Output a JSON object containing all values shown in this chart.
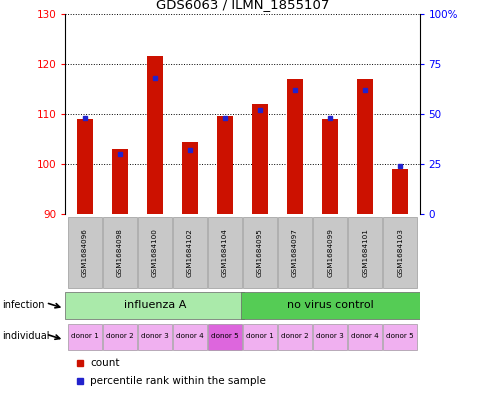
{
  "title": "GDS6063 / ILMN_1855107",
  "samples": [
    "GSM1684096",
    "GSM1684098",
    "GSM1684100",
    "GSM1684102",
    "GSM1684104",
    "GSM1684095",
    "GSM1684097",
    "GSM1684099",
    "GSM1684101",
    "GSM1684103"
  ],
  "count_values": [
    109.0,
    103.0,
    121.5,
    104.5,
    109.5,
    112.0,
    117.0,
    109.0,
    117.0,
    99.0
  ],
  "percentile_values": [
    48,
    30,
    68,
    32,
    48,
    52,
    62,
    48,
    62,
    24
  ],
  "ylim_left": [
    90,
    130
  ],
  "ylim_right": [
    0,
    100
  ],
  "yticks_left": [
    90,
    100,
    110,
    120,
    130
  ],
  "yticks_right": [
    0,
    25,
    50,
    75,
    100
  ],
  "yticklabels_right": [
    "0",
    "25",
    "50",
    "75",
    "100%"
  ],
  "infection_groups": [
    {
      "label": "influenza A",
      "start": 0,
      "end": 5,
      "color": "#aaeaaa"
    },
    {
      "label": "no virus control",
      "start": 5,
      "end": 10,
      "color": "#55cc55"
    }
  ],
  "individual_labels": [
    "donor 1",
    "donor 2",
    "donor 3",
    "donor 4",
    "donor 5",
    "donor 1",
    "donor 2",
    "donor 3",
    "donor 4",
    "donor 5"
  ],
  "individual_colors": [
    "#f0b0f0",
    "#f0b0f0",
    "#f0b0f0",
    "#f0b0f0",
    "#dd66dd",
    "#f0b0f0",
    "#f0b0f0",
    "#f0b0f0",
    "#f0b0f0",
    "#f0b0f0"
  ],
  "bar_color": "#cc1100",
  "blue_color": "#2222cc",
  "sample_box_color": "#c8c8c8",
  "bar_width": 0.45
}
